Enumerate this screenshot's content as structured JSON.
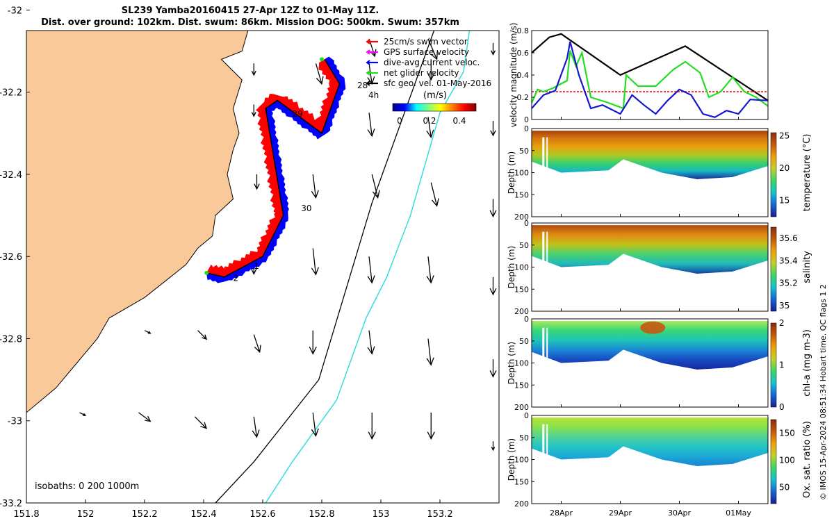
{
  "title_line1": "SL239 Yamba20160415 27-Apr 12Z to 01-May 11Z.",
  "title_line2": "Dist. over ground: 102km. Dist. swum: 86km. Mission DOG: 500km. Swum: 357km",
  "credit": "© IMOS 15-Apr-2024 08:51:34 Hobart time. QC flags 1  2",
  "colors": {
    "land": "#f9c99a",
    "swim": "#ff0000",
    "gps": "#ff00ff",
    "current": "#0000ff",
    "net": "#22dd22",
    "geo": "#000000",
    "iso200": "#000000",
    "iso1000": "#33dddd"
  },
  "chart_data": [
    {
      "type": "scatter",
      "name": "track-map",
      "xlim": [
        151.8,
        153.4
      ],
      "ylim": [
        -33.2,
        -32.05
      ],
      "xticks": [
        "151.8",
        "152",
        "152.2",
        "152.4",
        "152.6",
        "152.8",
        "153",
        "153.2"
      ],
      "yticks": [
        "-32",
        "-32.2",
        "-32.4",
        "-32.6",
        "-32.8",
        "-33",
        "-33.2"
      ],
      "legend": [
        "25cm/s swim vector",
        "GPS surface velocity",
        "dive-avg current veloc.",
        "net glider velocity",
        "sfc geo. vel. 01-May-2016"
      ],
      "legend_scale_label": "4h",
      "colorbar_label": "(m/s)",
      "colorbar_ticks": [
        "0",
        "0.2",
        "0.4"
      ],
      "isobath_label": "isobaths: 0   200  1000m",
      "day_labels": [
        {
          "text": "28",
          "lon": 152.92,
          "lat": -32.19
        },
        {
          "text": "29",
          "lon": 152.7,
          "lat": -32.26
        },
        {
          "text": "30",
          "lon": 152.73,
          "lat": -32.49
        },
        {
          "text": "1",
          "lon": 152.57,
          "lat": -32.63
        },
        {
          "text": "2",
          "lon": 152.5,
          "lat": -32.66
        }
      ],
      "track": [
        [
          152.81,
          -32.12
        ],
        [
          152.86,
          -32.18
        ],
        [
          152.8,
          -32.3
        ],
        [
          152.65,
          -32.22
        ],
        [
          152.61,
          -32.24
        ],
        [
          152.67,
          -32.5
        ],
        [
          152.6,
          -32.6
        ],
        [
          152.47,
          -32.65
        ],
        [
          152.41,
          -32.64
        ]
      ],
      "net_start": [
        152.8,
        -32.12
      ],
      "isobath_200": [
        [
          153.18,
          -32.05
        ],
        [
          152.97,
          -32.47
        ],
        [
          152.79,
          -32.9
        ],
        [
          152.57,
          -33.1
        ],
        [
          152.44,
          -33.2
        ]
      ],
      "isobath_1000": [
        [
          153.3,
          -32.05
        ],
        [
          153.28,
          -32.15
        ],
        [
          153.2,
          -32.25
        ],
        [
          153.1,
          -32.5
        ],
        [
          153.02,
          -32.65
        ],
        [
          152.95,
          -32.75
        ],
        [
          152.85,
          -32.95
        ],
        [
          152.7,
          -33.1
        ],
        [
          152.61,
          -33.2
        ]
      ],
      "coast": [
        [
          151.8,
          -32.05
        ],
        [
          152.55,
          -32.05
        ],
        [
          152.53,
          -32.1
        ],
        [
          152.46,
          -32.12
        ],
        [
          152.53,
          -32.17
        ],
        [
          152.5,
          -32.24
        ],
        [
          152.52,
          -32.3
        ],
        [
          152.5,
          -32.34
        ],
        [
          152.48,
          -32.4
        ],
        [
          152.5,
          -32.46
        ],
        [
          152.44,
          -32.5
        ],
        [
          152.43,
          -32.55
        ],
        [
          152.38,
          -32.58
        ],
        [
          152.34,
          -32.62
        ],
        [
          152.27,
          -32.66
        ],
        [
          152.2,
          -32.7
        ],
        [
          152.08,
          -32.75
        ],
        [
          152.04,
          -32.8
        ],
        [
          151.97,
          -32.86
        ],
        [
          151.9,
          -32.92
        ],
        [
          151.8,
          -32.98
        ]
      ],
      "geo_vectors": [
        {
          "lon": 153.38,
          "lat": -32.08,
          "u": 0.0,
          "v": -0.04
        },
        {
          "lon": 153.16,
          "lat": -32.07,
          "u": 0.03,
          "v": -0.07
        },
        {
          "lon": 152.96,
          "lat": -32.07,
          "u": 0.02,
          "v": -0.06
        },
        {
          "lon": 152.57,
          "lat": -32.13,
          "u": 0.0,
          "v": -0.04
        },
        {
          "lon": 152.78,
          "lat": -32.13,
          "u": 0.02,
          "v": -0.07
        },
        {
          "lon": 152.96,
          "lat": -32.13,
          "u": 0.01,
          "v": -0.07
        },
        {
          "lon": 153.17,
          "lat": -32.12,
          "u": 0.0,
          "v": -0.07
        },
        {
          "lon": 152.57,
          "lat": -32.23,
          "u": 0.0,
          "v": -0.04
        },
        {
          "lon": 152.96,
          "lat": -32.25,
          "u": 0.01,
          "v": -0.08
        },
        {
          "lon": 153.16,
          "lat": -32.26,
          "u": 0.01,
          "v": -0.07
        },
        {
          "lon": 153.38,
          "lat": -32.27,
          "u": 0.0,
          "v": -0.05
        },
        {
          "lon": 152.58,
          "lat": -32.4,
          "u": 0.0,
          "v": -0.05
        },
        {
          "lon": 152.77,
          "lat": -32.4,
          "u": 0.01,
          "v": -0.08
        },
        {
          "lon": 152.97,
          "lat": -32.4,
          "u": 0.02,
          "v": -0.08
        },
        {
          "lon": 153.17,
          "lat": -32.42,
          "u": 0.02,
          "v": -0.08
        },
        {
          "lon": 153.38,
          "lat": -32.46,
          "u": 0.0,
          "v": -0.06
        },
        {
          "lon": 152.57,
          "lat": -32.6,
          "u": 0.0,
          "v": -0.06
        },
        {
          "lon": 152.77,
          "lat": -32.58,
          "u": 0.01,
          "v": -0.09
        },
        {
          "lon": 152.96,
          "lat": -32.6,
          "u": 0.01,
          "v": -0.09
        },
        {
          "lon": 153.16,
          "lat": -32.6,
          "u": 0.01,
          "v": -0.09
        },
        {
          "lon": 153.38,
          "lat": -32.65,
          "u": 0.0,
          "v": -0.06
        },
        {
          "lon": 152.38,
          "lat": -32.78,
          "u": 0.03,
          "v": -0.03
        },
        {
          "lon": 152.57,
          "lat": -32.79,
          "u": 0.02,
          "v": -0.06
        },
        {
          "lon": 152.77,
          "lat": -32.78,
          "u": 0.0,
          "v": -0.08
        },
        {
          "lon": 152.96,
          "lat": -32.78,
          "u": 0.01,
          "v": -0.08
        },
        {
          "lon": 153.16,
          "lat": -32.8,
          "u": 0.01,
          "v": -0.09
        },
        {
          "lon": 153.38,
          "lat": -32.85,
          "u": 0.0,
          "v": -0.06
        },
        {
          "lon": 152.18,
          "lat": -32.98,
          "u": 0.04,
          "v": -0.03
        },
        {
          "lon": 152.37,
          "lat": -32.99,
          "u": 0.04,
          "v": -0.04
        },
        {
          "lon": 152.57,
          "lat": -32.99,
          "u": 0.01,
          "v": -0.07
        },
        {
          "lon": 152.77,
          "lat": -32.98,
          "u": 0.01,
          "v": -0.08
        },
        {
          "lon": 152.97,
          "lat": -32.98,
          "u": 0.0,
          "v": -0.09
        },
        {
          "lon": 153.17,
          "lat": -32.98,
          "u": 0.0,
          "v": -0.09
        },
        {
          "lon": 153.38,
          "lat": -33.05,
          "u": 0.0,
          "v": -0.03
        },
        {
          "lon": 151.98,
          "lat": -32.98,
          "u": 0.02,
          "v": -0.01
        },
        {
          "lon": 152.2,
          "lat": -32.78,
          "u": 0.02,
          "v": -0.01
        }
      ]
    },
    {
      "type": "line",
      "name": "velocity-magnitude",
      "ylabel": "velocity magnitude (m/s)",
      "ylim": [
        0,
        0.8
      ],
      "yticks": [
        "0",
        "0.2",
        "0.4",
        "0.6",
        "0.8"
      ],
      "xlim": [
        0,
        4.0
      ],
      "series": [
        {
          "color": "#000000",
          "x": [
            0,
            0.3,
            0.5,
            1.5,
            2.6,
            4.0
          ],
          "y": [
            0.6,
            0.74,
            0.77,
            0.4,
            0.66,
            0.17
          ]
        },
        {
          "color": "#ff0000",
          "x": [
            0,
            4.0
          ],
          "y": [
            0.25,
            0.25
          ]
        },
        {
          "color": "#22dd22",
          "x": [
            0,
            0.1,
            0.2,
            0.35,
            0.6,
            0.65,
            0.75,
            0.85,
            1.0,
            1.3,
            1.55,
            1.6,
            1.8,
            2.1,
            2.4,
            2.6,
            2.85,
            3.0,
            3.2,
            3.4,
            3.6,
            3.8,
            4.0
          ],
          "y": [
            0.15,
            0.27,
            0.25,
            0.28,
            0.35,
            0.62,
            0.48,
            0.6,
            0.2,
            0.15,
            0.1,
            0.4,
            0.3,
            0.3,
            0.45,
            0.52,
            0.42,
            0.2,
            0.25,
            0.38,
            0.25,
            0.2,
            0.12
          ]
        },
        {
          "color": "#1515d5",
          "x": [
            0,
            0.2,
            0.4,
            0.6,
            0.65,
            0.8,
            1.0,
            1.2,
            1.5,
            1.7,
            1.9,
            2.1,
            2.3,
            2.5,
            2.7,
            2.9,
            3.1,
            3.3,
            3.5,
            3.7,
            4.0
          ],
          "y": [
            0.1,
            0.22,
            0.26,
            0.55,
            0.7,
            0.4,
            0.1,
            0.13,
            0.05,
            0.22,
            0.13,
            0.05,
            0.17,
            0.27,
            0.22,
            0.05,
            0.02,
            0.08,
            0.05,
            0.18,
            0.17
          ]
        }
      ]
    },
    {
      "type": "heatmap",
      "name": "temperature-section",
      "ylabel": "Depth (m)",
      "yticks": [
        "0",
        "50",
        "100",
        "150",
        "200"
      ],
      "colorbar_label": "temperature (°C)",
      "colorbar_ticks": [
        "15",
        "20",
        "25"
      ],
      "colorbar_range": [
        12.5,
        25.5
      ],
      "seabed_depth": [
        [
          0,
          75
        ],
        [
          0.5,
          100
        ],
        [
          1.3,
          95
        ],
        [
          1.55,
          70
        ],
        [
          2.2,
          100
        ],
        [
          2.8,
          115
        ],
        [
          3.4,
          110
        ],
        [
          4.0,
          85
        ]
      ]
    },
    {
      "type": "heatmap",
      "name": "salinity-section",
      "ylabel": "Depth (m)",
      "yticks": [
        "0",
        "50",
        "100",
        "150",
        "200"
      ],
      "colorbar_label": "salinity",
      "colorbar_ticks": [
        "35",
        "35.2",
        "35.4",
        "35.6"
      ],
      "colorbar_range": [
        34.95,
        35.7
      ],
      "seabed_depth": [
        [
          0,
          75
        ],
        [
          0.5,
          100
        ],
        [
          1.3,
          95
        ],
        [
          1.55,
          70
        ],
        [
          2.2,
          100
        ],
        [
          2.8,
          115
        ],
        [
          3.4,
          110
        ],
        [
          4.0,
          85
        ]
      ]
    },
    {
      "type": "heatmap",
      "name": "chla-section",
      "ylabel": "Depth (m)",
      "yticks": [
        "0",
        "50",
        "100",
        "150",
        "200"
      ],
      "colorbar_label": "chl-a (mg m-3)",
      "colorbar_ticks": [
        "0",
        "1",
        "2"
      ],
      "colorbar_range": [
        0,
        2
      ],
      "seabed_depth": [
        [
          0,
          75
        ],
        [
          0.5,
          100
        ],
        [
          1.3,
          95
        ],
        [
          1.55,
          70
        ],
        [
          2.2,
          100
        ],
        [
          2.8,
          115
        ],
        [
          3.4,
          110
        ],
        [
          4.0,
          85
        ]
      ]
    },
    {
      "type": "heatmap",
      "name": "oxygen-section",
      "ylabel": "Depth (m)",
      "yticks": [
        "0",
        "50",
        "100",
        "150",
        "200"
      ],
      "colorbar_label": "Ox. sat. ratio (%)",
      "colorbar_ticks": [
        "50",
        "100",
        "150"
      ],
      "colorbar_range": [
        20,
        175
      ],
      "seabed_depth": [
        [
          0,
          75
        ],
        [
          0.5,
          100
        ],
        [
          1.3,
          95
        ],
        [
          1.55,
          70
        ],
        [
          2.2,
          100
        ],
        [
          2.8,
          115
        ],
        [
          3.4,
          110
        ],
        [
          4.0,
          85
        ]
      ],
      "xticks": [
        "28Apr",
        "29Apr",
        "30Apr",
        "01May"
      ]
    }
  ]
}
